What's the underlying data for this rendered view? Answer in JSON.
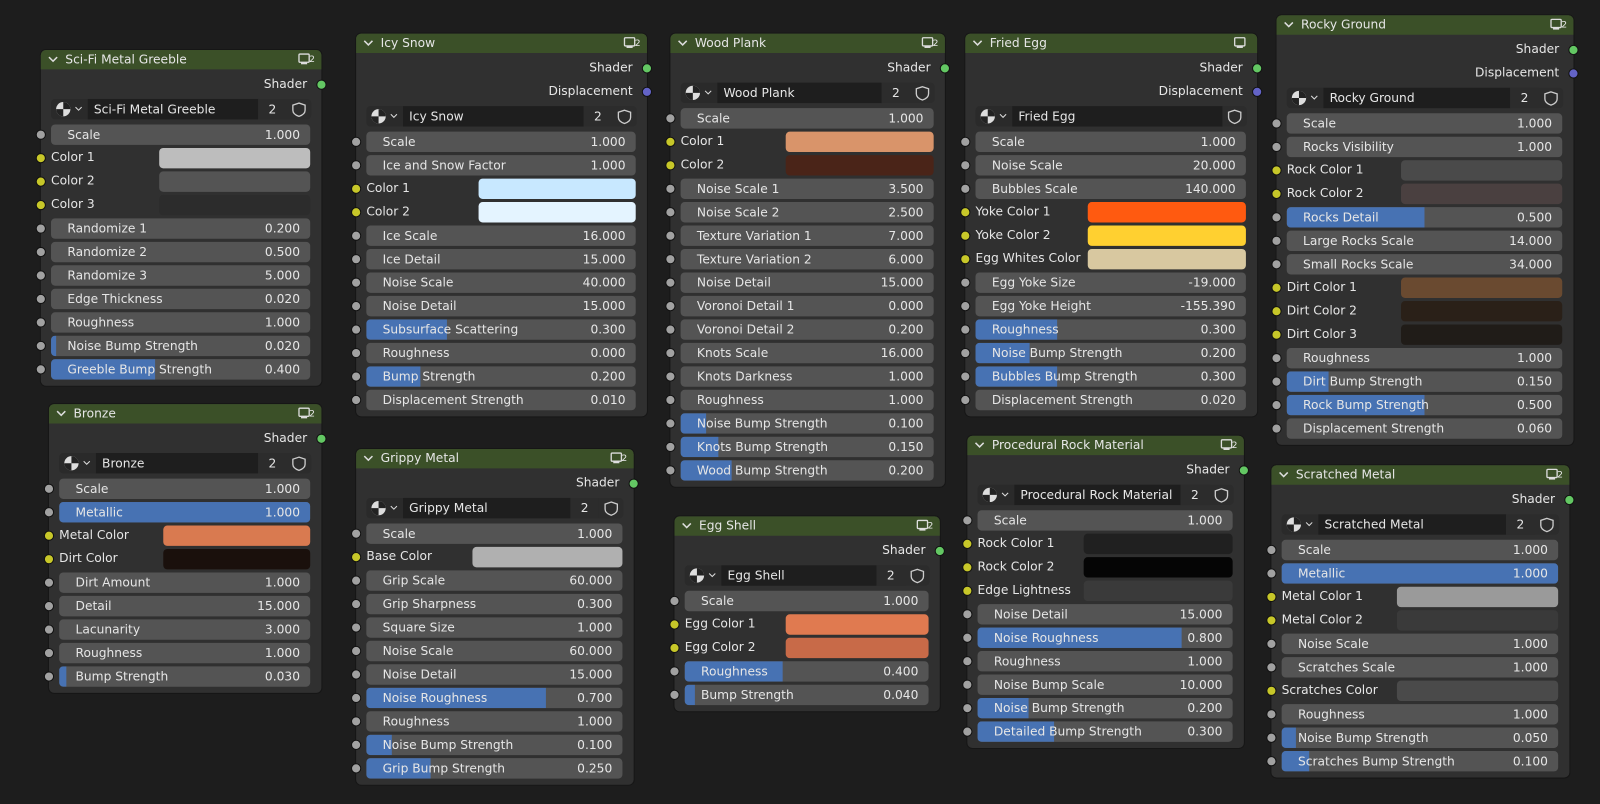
{
  "nodes": [
    {
      "title": "Sci-Fi Metal Greeble",
      "outputs": [
        "Shader"
      ],
      "material": "Sci-Fi Metal Greeble",
      "users": "2",
      "rows": [
        {
          "label": "Scale",
          "value": "1.000"
        },
        {
          "label": "Color 1",
          "color": "#bdbdbd"
        },
        {
          "label": "Color 2",
          "color": "#545454"
        },
        {
          "label": "Color 3",
          "color": "#2c2c2c"
        },
        {
          "label": "Randomize 1",
          "value": "0.200"
        },
        {
          "label": "Randomize 2",
          "value": "0.500"
        },
        {
          "label": "Randomize 3",
          "value": "5.000"
        },
        {
          "label": "Edge Thickness",
          "value": "0.020"
        },
        {
          "label": "Roughness",
          "value": "1.000"
        },
        {
          "label": "Noise Bump Strength",
          "value": "0.020",
          "factor": true
        },
        {
          "label": "Greeble Bump Strength",
          "value": "0.400",
          "factor": true
        }
      ]
    },
    {
      "title": "Bronze",
      "outputs": [
        "Shader"
      ],
      "material": "Bronze",
      "users": "2",
      "rows": [
        {
          "label": "Scale",
          "value": "1.000"
        },
        {
          "label": "Metallic",
          "value": "1.000",
          "factor": true
        },
        {
          "label": "Metal Color",
          "color": "#d97a50"
        },
        {
          "label": "Dirt Color",
          "color": "#1a100c"
        },
        {
          "label": "Dirt Amount",
          "value": "1.000"
        },
        {
          "label": "Detail",
          "value": "15.000"
        },
        {
          "label": "Lacunarity",
          "value": "3.000"
        },
        {
          "label": "Roughness",
          "value": "1.000"
        },
        {
          "label": "Bump Strength",
          "value": "0.030",
          "factor": true
        }
      ]
    },
    {
      "title": "Icy Snow",
      "outputs": [
        "Shader",
        "Displacement"
      ],
      "material": "Icy Snow",
      "users": "2",
      "rows": [
        {
          "label": "Scale",
          "value": "1.000"
        },
        {
          "label": "Ice and Snow Factor",
          "value": "1.000"
        },
        {
          "label": "Color 1",
          "color": "#c8e8ff"
        },
        {
          "label": "Color 2",
          "color": "#e4f4ff"
        },
        {
          "label": "Ice Scale",
          "value": "16.000"
        },
        {
          "label": "Ice Detail",
          "value": "15.000"
        },
        {
          "label": "Noise Scale",
          "value": "40.000"
        },
        {
          "label": "Noise Detail",
          "value": "15.000"
        },
        {
          "label": "Subsurface Scattering",
          "value": "0.300",
          "factor": true
        },
        {
          "label": "Roughness",
          "value": "0.000"
        },
        {
          "label": "Bump Strength",
          "value": "0.200",
          "factor": true
        },
        {
          "label": "Displacement Strength",
          "value": "0.010"
        }
      ]
    },
    {
      "title": "Grippy Metal",
      "outputs": [
        "Shader"
      ],
      "material": "Grippy Metal",
      "users": "2",
      "rows": [
        {
          "label": "Scale",
          "value": "1.000"
        },
        {
          "label": "Base Color",
          "color": "#b0b0b0"
        },
        {
          "label": "Grip Scale",
          "value": "60.000"
        },
        {
          "label": "Grip Sharpness",
          "value": "0.300"
        },
        {
          "label": "Square Size",
          "value": "1.000"
        },
        {
          "label": "Noise Scale",
          "value": "60.000"
        },
        {
          "label": "Noise Detail",
          "value": "15.000"
        },
        {
          "label": "Noise Roughness",
          "value": "0.700",
          "factor": true
        },
        {
          "label": "Roughness",
          "value": "1.000"
        },
        {
          "label": "Noise Bump Strength",
          "value": "0.100",
          "factor": true
        },
        {
          "label": "Grip Bump Strength",
          "value": "0.250",
          "factor": true
        }
      ]
    },
    {
      "title": "Wood Plank",
      "outputs": [
        "Shader"
      ],
      "material": "Wood Plank",
      "users": "2",
      "rows": [
        {
          "label": "Scale",
          "value": "1.000"
        },
        {
          "label": "Color 1",
          "color": "#d9946a"
        },
        {
          "label": "Color 2",
          "color": "#4a2418"
        },
        {
          "label": "Noise Scale 1",
          "value": "3.500"
        },
        {
          "label": "Noise Scale 2",
          "value": "2.500"
        },
        {
          "label": "Texture Variation 1",
          "value": "7.000"
        },
        {
          "label": "Texture Variation 2",
          "value": "6.000"
        },
        {
          "label": "Noise Detail",
          "value": "15.000"
        },
        {
          "label": "Voronoi Detail 1",
          "value": "0.000"
        },
        {
          "label": "Voronoi Detail 2",
          "value": "0.200"
        },
        {
          "label": "Knots Scale",
          "value": "16.000"
        },
        {
          "label": "Knots Darkness",
          "value": "1.000"
        },
        {
          "label": "Roughness",
          "value": "1.000"
        },
        {
          "label": "Noise Bump Strength",
          "value": "0.100",
          "factor": true
        },
        {
          "label": "Knots Bump Strength",
          "value": "0.150",
          "factor": true
        },
        {
          "label": "Wood Bump Strength",
          "value": "0.200",
          "factor": true
        }
      ]
    },
    {
      "title": "Egg Shell",
      "outputs": [
        "Shader"
      ],
      "material": "Egg Shell",
      "users": "2",
      "rows": [
        {
          "label": "Scale",
          "value": "1.000"
        },
        {
          "label": "Egg Color 1",
          "color": "#e07a50"
        },
        {
          "label": "Egg Color 2",
          "color": "#c86a48"
        },
        {
          "label": "Roughness",
          "value": "0.400",
          "factor": true
        },
        {
          "label": "Bump Strength",
          "value": "0.040",
          "factor": true
        }
      ]
    },
    {
      "title": "Fried Egg",
      "outputs": [
        "Shader",
        "Displacement"
      ],
      "material": "Fried Egg",
      "rows": [
        {
          "label": "Scale",
          "value": "1.000"
        },
        {
          "label": "Noise Scale",
          "value": "20.000"
        },
        {
          "label": "Bubbles Scale",
          "value": "140.000"
        },
        {
          "label": "Yoke Color 1",
          "color": "#ff5a10"
        },
        {
          "label": "Yoke Color 2",
          "color": "#ffd030"
        },
        {
          "label": "Egg Whites Color",
          "color": "#d8c8a0"
        },
        {
          "label": "Egg Yoke Size",
          "value": "-19.000"
        },
        {
          "label": "Egg Yoke Height",
          "value": "-155.390"
        },
        {
          "label": "Roughness",
          "value": "0.300",
          "factor": true
        },
        {
          "label": "Noise Bump Strength",
          "value": "0.200",
          "factor": true
        },
        {
          "label": "Bubbles Bump Strength",
          "value": "0.300",
          "factor": true
        },
        {
          "label": "Displacement Strength",
          "value": "0.020"
        }
      ]
    },
    {
      "title": "Procedural Rock Material",
      "outputs": [
        "Shader"
      ],
      "material": "Procedural Rock Material",
      "users": "2",
      "rows": [
        {
          "label": "Scale",
          "value": "1.000"
        },
        {
          "label": "Rock Color 1",
          "color": "#202020"
        },
        {
          "label": "Rock Color 2",
          "color": "#050505"
        },
        {
          "label": "Edge Lightness",
          "color": "#3a3a3a"
        },
        {
          "label": "Noise Detail",
          "value": "15.000"
        },
        {
          "label": "Noise Roughness",
          "value": "0.800",
          "factor": true
        },
        {
          "label": "Roughness",
          "value": "1.000"
        },
        {
          "label": "Noise Bump Scale",
          "value": "10.000"
        },
        {
          "label": "Noise Bump Strength",
          "value": "0.200",
          "factor": true
        },
        {
          "label": "Detailed Bump Strength",
          "value": "0.300",
          "factor": true
        }
      ]
    },
    {
      "title": "Rocky Ground",
      "outputs": [
        "Shader",
        "Displacement"
      ],
      "material": "Rocky Ground",
      "users": "2",
      "rows": [
        {
          "label": "Scale",
          "value": "1.000"
        },
        {
          "label": "Rocks Visibility",
          "value": "1.000"
        },
        {
          "label": "Rock Color 1",
          "color": "#4a4a4a"
        },
        {
          "label": "Rock Color 2",
          "color": "#4a4040"
        },
        {
          "label": "Rocks Detail",
          "value": "0.500",
          "factor": true
        },
        {
          "label": "Large Rocks Scale",
          "value": "14.000"
        },
        {
          "label": "Small Rocks Scale",
          "value": "34.000"
        },
        {
          "label": "Dirt Color 1",
          "color": "#6a4a30"
        },
        {
          "label": "Dirt Color 2",
          "color": "#2a2018"
        },
        {
          "label": "Dirt Color 3",
          "color": "#201c18"
        },
        {
          "label": "Roughness",
          "value": "1.000"
        },
        {
          "label": "Dirt Bump Strength",
          "value": "0.150",
          "factor": true
        },
        {
          "label": "Rock Bump Strength",
          "value": "0.500",
          "factor": true
        },
        {
          "label": "Displacement Strength",
          "value": "0.060"
        }
      ]
    },
    {
      "title": "Scratched Metal",
      "outputs": [
        "Shader"
      ],
      "material": "Scratched Metal",
      "users": "2",
      "rows": [
        {
          "label": "Scale",
          "value": "1.000"
        },
        {
          "label": "Metallic",
          "value": "1.000",
          "factor": true
        },
        {
          "label": "Metal Color 1",
          "color": "#9a9a9a"
        },
        {
          "label": "Metal Color 2",
          "color": "#3a3a3a"
        },
        {
          "label": "Noise Scale",
          "value": "1.000"
        },
        {
          "label": "Scratches Scale",
          "value": "1.000"
        },
        {
          "label": "Scratches Color",
          "color": "#4a4a4a"
        },
        {
          "label": "Roughness",
          "value": "1.000"
        },
        {
          "label": "Noise Bump Strength",
          "value": "0.050",
          "factor": true
        },
        {
          "label": "Scratches Bump Strength",
          "value": "0.100",
          "factor": true
        }
      ]
    }
  ]
}
